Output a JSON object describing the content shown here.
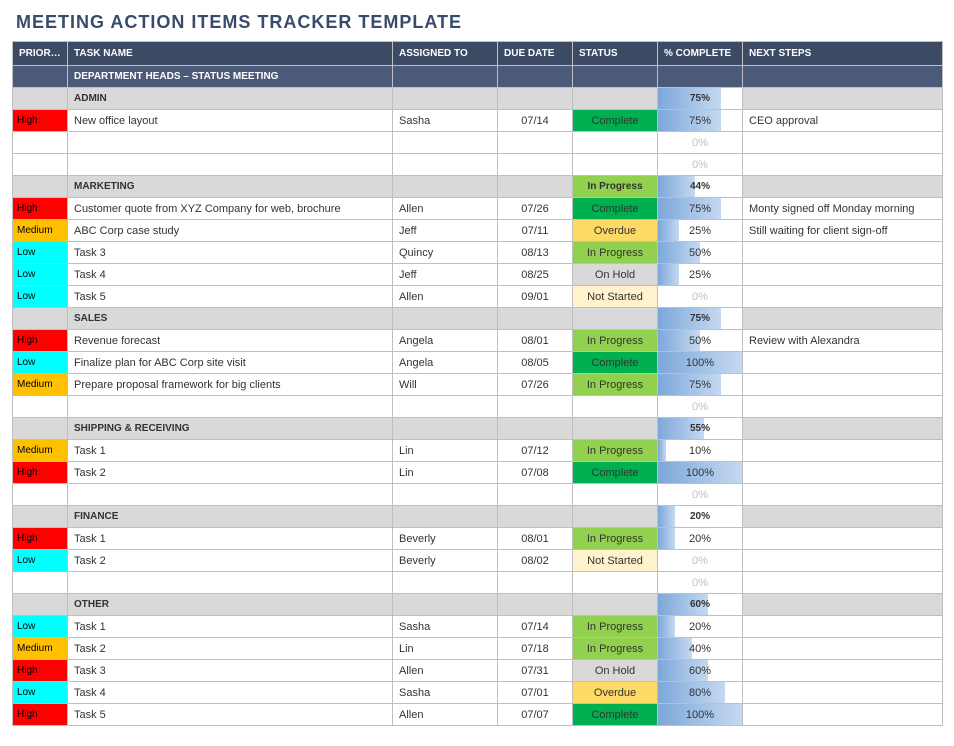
{
  "title": "MEETING ACTION ITEMS TRACKER TEMPLATE",
  "columns": [
    "PRIORITY",
    "TASK NAME",
    "ASSIGNED TO",
    "DUE DATE",
    "STATUS",
    "% COMPLETE",
    "NEXT STEPS"
  ],
  "meeting_header": "DEPARTMENT HEADS – STATUS MEETING",
  "priority_colors": {
    "High": "#ff0000",
    "Medium": "#ffc000",
    "Low": "#00ffff"
  },
  "status_colors": {
    "Complete": "#00b050",
    "In Progress": "#92d050",
    "Overdue": "#ffd966",
    "On Hold": "#d9d9d9",
    "Not Started": "#fff2cc"
  },
  "pct_bar_gradient_from": "#7da7d9",
  "pct_bar_gradient_to": "#c5d9f1",
  "header_bg": "#3d4a63",
  "meeting_row_bg": "#4b5a78",
  "section_row_bg": "#d9d9d9",
  "border_color": "#bfbfbf",
  "sections": [
    {
      "name": "ADMIN",
      "section_status": "",
      "section_pct": 75,
      "rows": [
        {
          "priority": "High",
          "task": "New office layout",
          "assigned": "Sasha",
          "due": "07/14",
          "status": "Complete",
          "pct": 75,
          "next": "CEO approval"
        },
        {
          "priority": "",
          "task": "",
          "assigned": "",
          "due": "",
          "status": "",
          "pct": 0,
          "next": ""
        },
        {
          "priority": "",
          "task": "",
          "assigned": "",
          "due": "",
          "status": "",
          "pct": 0,
          "next": ""
        }
      ]
    },
    {
      "name": "MARKETING",
      "section_status": "In Progress",
      "section_pct": 44,
      "rows": [
        {
          "priority": "High",
          "task": "Customer quote from XYZ Company for web, brochure",
          "assigned": "Allen",
          "due": "07/26",
          "status": "Complete",
          "pct": 75,
          "next": "Monty signed off Monday morning"
        },
        {
          "priority": "Medium",
          "task": "ABC Corp case study",
          "assigned": "Jeff",
          "due": "07/11",
          "status": "Overdue",
          "pct": 25,
          "next": "Still waiting for client sign-off"
        },
        {
          "priority": "Low",
          "task": "Task 3",
          "assigned": "Quincy",
          "due": "08/13",
          "status": "In Progress",
          "pct": 50,
          "next": ""
        },
        {
          "priority": "Low",
          "task": "Task 4",
          "assigned": "Jeff",
          "due": "08/25",
          "status": "On Hold",
          "pct": 25,
          "next": ""
        },
        {
          "priority": "Low",
          "task": "Task 5",
          "assigned": "Allen",
          "due": "09/01",
          "status": "Not Started",
          "pct": 0,
          "next": ""
        }
      ]
    },
    {
      "name": "SALES",
      "section_status": "",
      "section_pct": 75,
      "rows": [
        {
          "priority": "High",
          "task": "Revenue forecast",
          "assigned": "Angela",
          "due": "08/01",
          "status": "In Progress",
          "pct": 50,
          "next": "Review with Alexandra"
        },
        {
          "priority": "Low",
          "task": "Finalize plan for ABC Corp site visit",
          "assigned": "Angela",
          "due": "08/05",
          "status": "Complete",
          "pct": 100,
          "next": ""
        },
        {
          "priority": "Medium",
          "task": "Prepare proposal framework for big clients",
          "assigned": "Will",
          "due": "07/26",
          "status": "In Progress",
          "pct": 75,
          "next": ""
        },
        {
          "priority": "",
          "task": "",
          "assigned": "",
          "due": "",
          "status": "",
          "pct": 0,
          "next": ""
        }
      ]
    },
    {
      "name": "SHIPPING & RECEIVING",
      "section_status": "",
      "section_pct": 55,
      "rows": [
        {
          "priority": "Medium",
          "task": "Task 1",
          "assigned": "Lin",
          "due": "07/12",
          "status": "In Progress",
          "pct": 10,
          "next": ""
        },
        {
          "priority": "High",
          "task": "Task 2",
          "assigned": "Lin",
          "due": "07/08",
          "status": "Complete",
          "pct": 100,
          "next": ""
        },
        {
          "priority": "",
          "task": "",
          "assigned": "",
          "due": "",
          "status": "",
          "pct": 0,
          "next": ""
        }
      ]
    },
    {
      "name": "FINANCE",
      "section_status": "",
      "section_pct": 20,
      "rows": [
        {
          "priority": "High",
          "task": "Task 1",
          "assigned": "Beverly",
          "due": "08/01",
          "status": "In Progress",
          "pct": 20,
          "next": ""
        },
        {
          "priority": "Low",
          "task": "Task 2",
          "assigned": "Beverly",
          "due": "08/02",
          "status": "Not Started",
          "pct": 0,
          "next": ""
        },
        {
          "priority": "",
          "task": "",
          "assigned": "",
          "due": "",
          "status": "",
          "pct": 0,
          "next": ""
        }
      ]
    },
    {
      "name": "OTHER",
      "section_status": "",
      "section_pct": 60,
      "rows": [
        {
          "priority": "Low",
          "task": "Task 1",
          "assigned": "Sasha",
          "due": "07/14",
          "status": "In Progress",
          "pct": 20,
          "next": ""
        },
        {
          "priority": "Medium",
          "task": "Task 2",
          "assigned": "Lin",
          "due": "07/18",
          "status": "In Progress",
          "pct": 40,
          "next": ""
        },
        {
          "priority": "High",
          "task": "Task 3",
          "assigned": "Allen",
          "due": "07/31",
          "status": "On Hold",
          "pct": 60,
          "next": ""
        },
        {
          "priority": "Low",
          "task": "Task 4",
          "assigned": "Sasha",
          "due": "07/01",
          "status": "Overdue",
          "pct": 80,
          "next": ""
        },
        {
          "priority": "High",
          "task": "Task 5",
          "assigned": "Allen",
          "due": "07/07",
          "status": "Complete",
          "pct": 100,
          "next": ""
        }
      ]
    }
  ]
}
